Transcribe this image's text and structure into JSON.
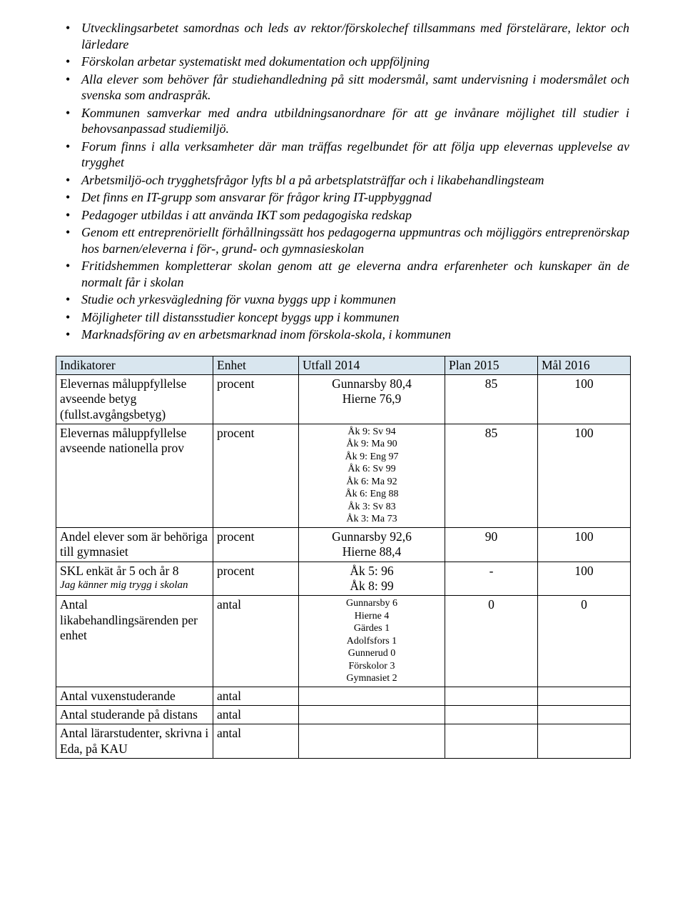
{
  "bullets": [
    "Utvecklingsarbetet samordnas och leds av rektor/förskolechef tillsammans med förstelärare, lektor och lärledare",
    "Förskolan arbetar systematiskt med dokumentation och uppföljning",
    "Alla elever som behöver får studiehandledning på sitt modersmål, samt undervisning i modersmålet och svenska som andraspråk.",
    "Kommunen samverkar med andra utbildningsanordnare för att ge invånare möjlighet till studier i behovsanpassad studiemiljö.",
    "Forum finns i alla verksamheter där man träffas regelbundet för att följa upp elevernas upplevelse av trygghet",
    "Arbetsmiljö-och trygghetsfrågor lyfts bl a på arbetsplatsträffar och i likabehandlingsteam",
    "Det finns en IT-grupp som ansvarar för frågor kring IT-uppbyggnad",
    "Pedagoger utbildas i att använda IKT som pedagogiska redskap",
    "Genom ett entreprenöriellt förhållningssätt hos pedagogerna uppmuntras och möjliggörs entreprenörskap hos barnen/eleverna i för-, grund- och gymnasieskolan",
    "Fritidshemmen kompletterar skolan genom att ge eleverna andra erfarenheter och kunskaper än de normalt får i skolan",
    "Studie och yrkesvägledning för vuxna byggs upp i kommunen",
    "Möjligheter till distansstudier koncept byggs upp i kommunen",
    "Marknadsföring av en arbetsmarknad inom förskola-skola, i kommunen"
  ],
  "table": {
    "header_bg": "#d9e6ef",
    "headers": [
      "Indikatorer",
      "Enhet",
      "Utfall 2014",
      "Plan 2015",
      "Mål 2016"
    ],
    "rows": [
      {
        "indicator": "Elevernas måluppfyllelse avseende betyg (fullst.avgångsbetyg)",
        "unit": "procent",
        "outcome": "Gunnarsby 80,4\nHierne 76,9",
        "plan": "85",
        "goal": "100"
      },
      {
        "indicator": "Elevernas måluppfyllelse avseende nationella prov",
        "unit": "procent",
        "outcome_small": "Åk 9: Sv 94\nÅk 9: Ma 90\nÅk 9: Eng 97\nÅk 6: Sv 99\nÅk 6: Ma 92\nÅk 6: Eng 88\nÅk 3: Sv 83\nÅk 3: Ma 73",
        "plan": "85",
        "goal": "100"
      },
      {
        "indicator": "Andel elever som är behöriga till gymnasiet",
        "unit": "procent",
        "outcome": "Gunnarsby 92,6\nHierne 88,4",
        "plan": "90",
        "goal": "100"
      },
      {
        "indicator_main": "SKL enkät år 5 och år 8",
        "indicator_sub": "Jag känner mig trygg i skolan",
        "unit": "procent",
        "outcome": "Åk 5: 96\nÅk 8: 99",
        "plan": "-",
        "goal": "100"
      },
      {
        "indicator": "Antal likabehandlingsärenden per enhet",
        "unit": "antal",
        "outcome_small": "Gunnarsby 6\nHierne 4\nGärdes 1\nAdolfsfors 1\nGunnerud 0\nFörskolor 3\nGymnasiet 2",
        "plan": "0",
        "goal": "0"
      },
      {
        "indicator": "Antal vuxenstuderande",
        "unit": "antal",
        "outcome": "",
        "plan": "",
        "goal": ""
      },
      {
        "indicator": "Antal studerande på distans",
        "unit": "antal",
        "outcome": "",
        "plan": "",
        "goal": ""
      },
      {
        "indicator": "Antal lärarstudenter, skrivna i Eda, på KAU",
        "unit": "antal",
        "outcome": "",
        "plan": "",
        "goal": ""
      }
    ]
  }
}
